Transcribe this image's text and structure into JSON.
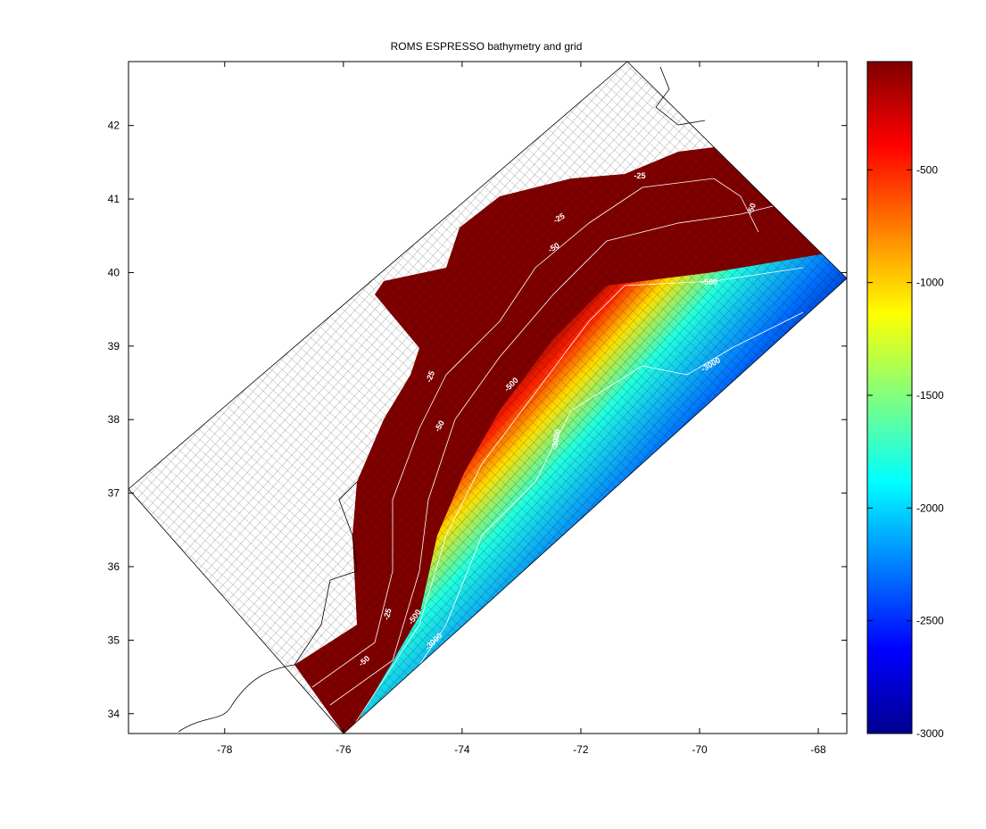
{
  "chart_data": {
    "type": "map",
    "title": "ROMS ESPRESSO bathymetry and grid",
    "xlim": [
      -79.62,
      -67.52
    ],
    "xticks": [
      -78,
      -76,
      -74,
      -72,
      -70,
      -68
    ],
    "ylim": [
      33.73,
      42.87
    ],
    "yticks": [
      34,
      35,
      36,
      37,
      38,
      39,
      40,
      41,
      42
    ],
    "colorbar": {
      "colormap": "jet",
      "clim": [
        -3000,
        -20
      ],
      "ticks": [
        -3000,
        -2500,
        -2000,
        -1500,
        -1000,
        -500
      ]
    },
    "contour_labels": [
      -25,
      -25,
      -50,
      -50,
      -500,
      -3000,
      -25,
      -50,
      -500,
      -3000,
      -25,
      -500,
      -50,
      -3000
    ]
  }
}
